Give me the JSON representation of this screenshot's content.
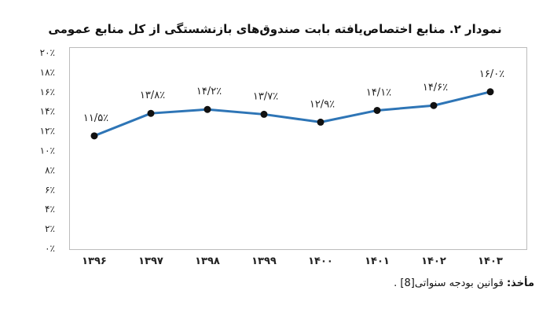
{
  "chart_data": {
    "type": "line",
    "title": "نمودار ۲. منابع اختصاص‌یافته بابت صندوق‌های بازنشستگی از کل منابع عمومی",
    "categories": [
      "۱۳۹۶",
      "۱۳۹۷",
      "۱۳۹۸",
      "۱۳۹۹",
      "۱۴۰۰",
      "۱۴۰۱",
      "۱۴۰۲",
      "۱۴۰۳"
    ],
    "values": [
      11.5,
      13.8,
      14.2,
      13.7,
      12.9,
      14.1,
      14.6,
      16.0
    ],
    "data_labels": [
      "۱۱/۵٪",
      "۱۳/۸٪",
      "۱۴/۲٪",
      "۱۳/۷٪",
      "۱۲/۹٪",
      "۱۴/۱٪",
      "۱۴/۶٪",
      "۱۶/۰٪"
    ],
    "yticks": [
      "۰٪",
      "۲٪",
      "۴٪",
      "۶٪",
      "۸٪",
      "۱۰٪",
      "۱۲٪",
      "۱۴٪",
      "۱۶٪",
      "۱۸٪",
      "۲۰٪"
    ],
    "ylim": [
      0,
      20
    ],
    "grid": false,
    "line_color": "#2e75b6",
    "marker_color": "#111111"
  },
  "source": {
    "label": "مأخذ:",
    "text": "قوانین بودجه سنواتی[8] ."
  }
}
